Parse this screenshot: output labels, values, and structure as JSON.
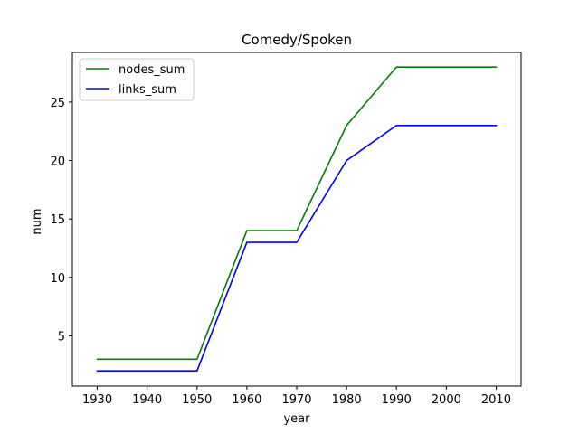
{
  "chart_data": {
    "type": "line",
    "title": "Comedy/Spoken",
    "xlabel": "year",
    "ylabel": "num",
    "x": [
      1930,
      1940,
      1950,
      1960,
      1970,
      1980,
      1990,
      2000,
      2010
    ],
    "xlim": [
      1925,
      2015
    ],
    "ylim": [
      0.7,
      29.25
    ],
    "xticks": [
      1930,
      1940,
      1950,
      1960,
      1970,
      1980,
      1990,
      2000,
      2010
    ],
    "yticks": [
      5,
      10,
      15,
      20,
      25
    ],
    "grid": false,
    "legend_position": "top-left",
    "series": [
      {
        "name": "nodes_sum",
        "color": "#008000",
        "values": [
          3,
          3,
          3,
          14,
          14,
          23,
          28,
          28,
          28
        ]
      },
      {
        "name": "links_sum",
        "color": "#0000ff",
        "values": [
          2,
          2,
          2,
          13,
          13,
          20,
          23,
          23,
          23
        ]
      }
    ]
  }
}
